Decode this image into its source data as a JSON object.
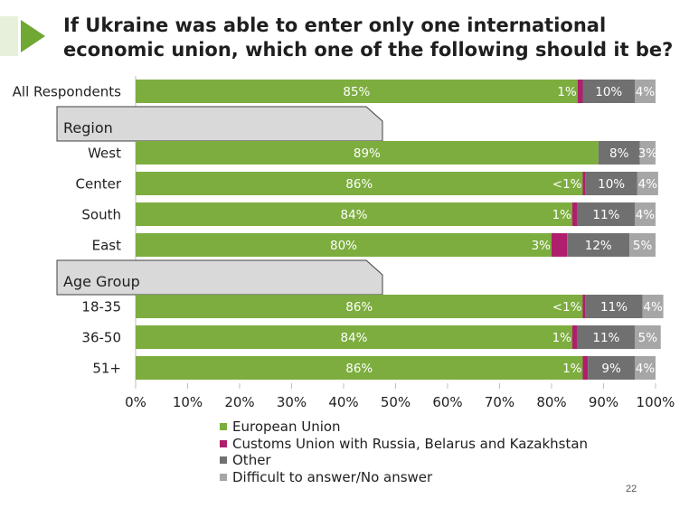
{
  "page": {
    "number": "22"
  },
  "colors": {
    "accent_green": "#6fa832",
    "pale_green": "#e6f0da",
    "european_union": "#7cad3e",
    "customs_union": "#b01e6e",
    "other": "#707070",
    "difficult": "#a6a6a6",
    "group_header_fill": "#d9d9d9"
  },
  "chart_data": {
    "type": "bar",
    "orientation": "horizontal",
    "stacked": true,
    "title": "If Ukraine was able to enter only one international economic union, which one of the following should it be?",
    "xlim": [
      0,
      100
    ],
    "x_ticks": [
      "0%",
      "10%",
      "20%",
      "30%",
      "40%",
      "50%",
      "60%",
      "70%",
      "80%",
      "90%",
      "100%"
    ],
    "legend_position": "bottom",
    "series_names": [
      "European Union",
      "Customs Union with Russia, Belarus and Kazakhstan",
      "Other",
      "Difficult to answer/No answer"
    ],
    "rows": [
      {
        "kind": "bar",
        "label": "All Respondents",
        "values": [
          85,
          1,
          10,
          4
        ],
        "labels": [
          "85%",
          "1%",
          "10%",
          "4%"
        ]
      },
      {
        "kind": "group",
        "label": "Region"
      },
      {
        "kind": "bar",
        "label": "West",
        "values": [
          89,
          0,
          8,
          3
        ],
        "labels": [
          "89%",
          "",
          "8%",
          "3%"
        ]
      },
      {
        "kind": "bar",
        "label": "Center",
        "values": [
          86,
          0.5,
          10,
          4
        ],
        "labels": [
          "86%",
          "<1%",
          "10%",
          "4%"
        ]
      },
      {
        "kind": "bar",
        "label": "South",
        "values": [
          84,
          1,
          11,
          4
        ],
        "labels": [
          "84%",
          "1%",
          "11%",
          "4%"
        ]
      },
      {
        "kind": "bar",
        "label": "East",
        "values": [
          80,
          3,
          12,
          5
        ],
        "labels": [
          "80%",
          "3%",
          "12%",
          "5%"
        ]
      },
      {
        "kind": "group",
        "label": "Age Group"
      },
      {
        "kind": "bar",
        "label": "18-35",
        "values": [
          86,
          0.5,
          11,
          4
        ],
        "labels": [
          "86%",
          "<1%",
          "11%",
          "4%"
        ]
      },
      {
        "kind": "bar",
        "label": "36-50",
        "values": [
          84,
          1,
          11,
          5
        ],
        "labels": [
          "84%",
          "1%",
          "11%",
          "5%"
        ]
      },
      {
        "kind": "bar",
        "label": "51+",
        "values": [
          86,
          1,
          9,
          4
        ],
        "labels": [
          "86%",
          "1%",
          "9%",
          "4%"
        ]
      }
    ]
  }
}
